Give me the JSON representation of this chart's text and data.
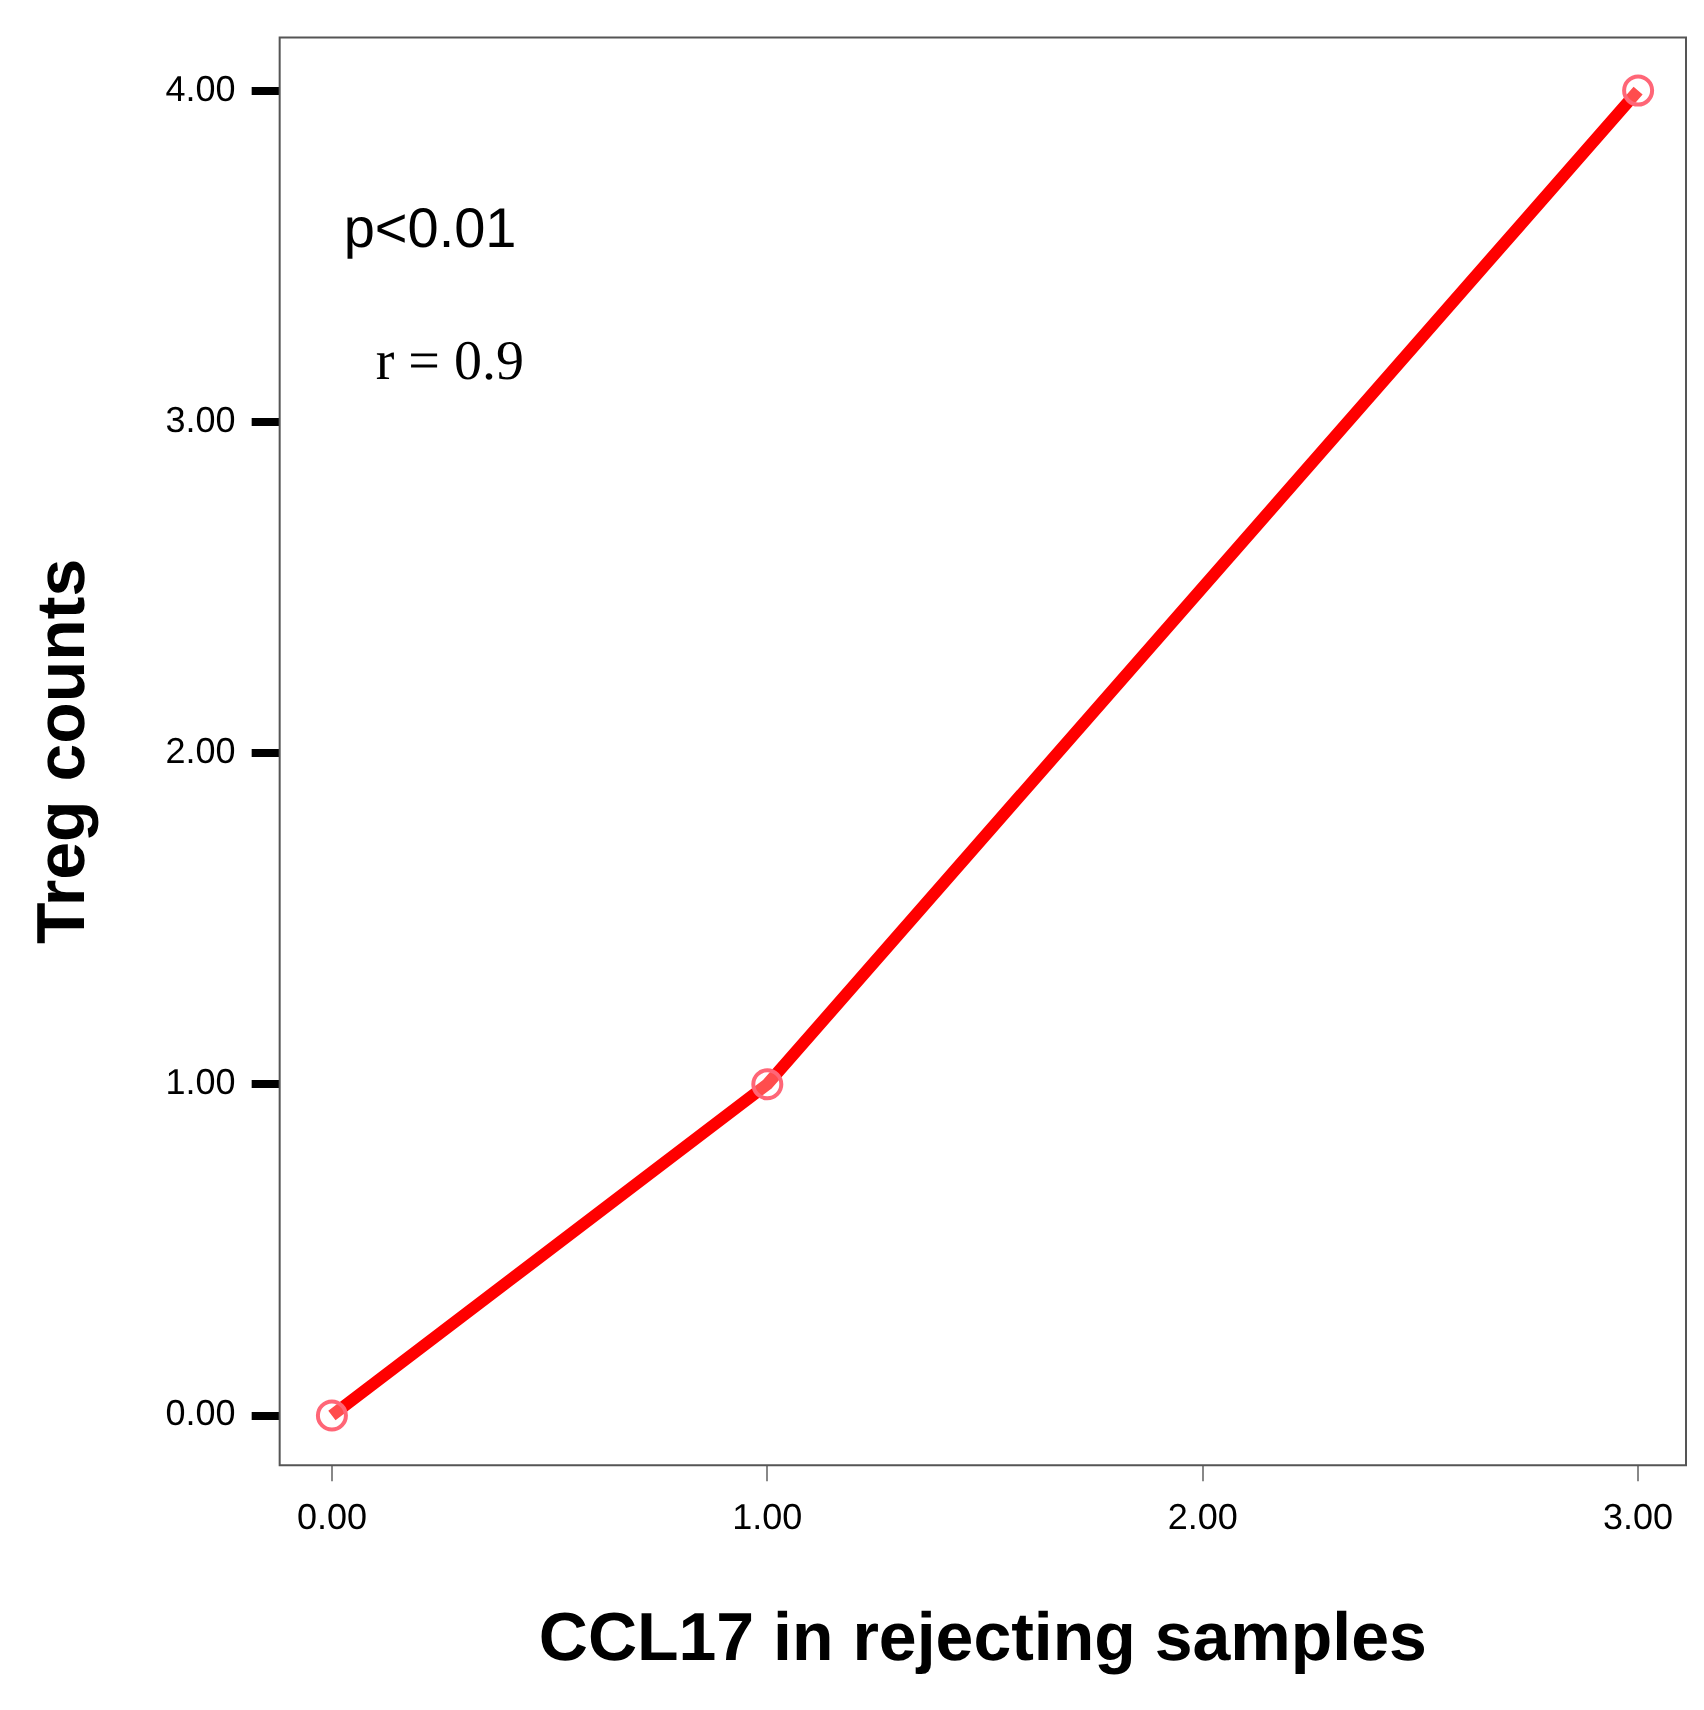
{
  "chart_data": {
    "type": "line",
    "xlabel": "CCL17 in rejecting samples",
    "ylabel": "Treg counts",
    "x": [
      0,
      1,
      3
    ],
    "series": [
      {
        "color": "#ff0000",
        "values": [
          0,
          1,
          4
        ]
      }
    ],
    "marker": "circle",
    "line_style": "solid",
    "grid": false,
    "legend": false,
    "xlim": [
      -0.12,
      3.11
    ],
    "ylim": [
      -0.15,
      4.16
    ],
    "xticks": [
      {
        "value": 0,
        "label": "0.00"
      },
      {
        "value": 1,
        "label": "1.00"
      },
      {
        "value": 2,
        "label": "2.00"
      },
      {
        "value": 3,
        "label": "3.00"
      }
    ],
    "yticks": [
      {
        "value": 0,
        "label": "0.00"
      },
      {
        "value": 1,
        "label": "1.00"
      },
      {
        "value": 2,
        "label": "2.00"
      },
      {
        "value": 3,
        "label": "3.00"
      },
      {
        "value": 4,
        "label": "4.00"
      }
    ],
    "annotations": [
      "p<0.01",
      "r = 0.9"
    ]
  }
}
